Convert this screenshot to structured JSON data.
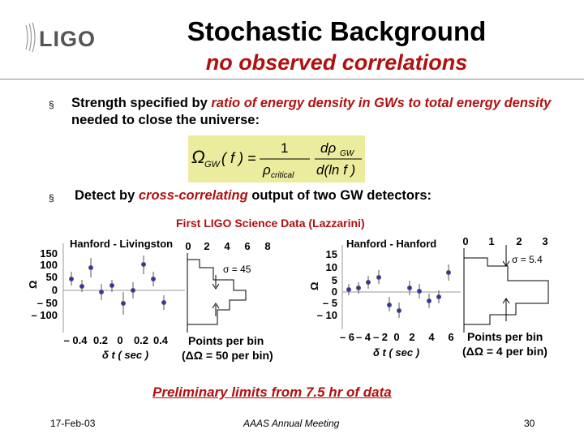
{
  "header": {
    "logo_text": "LIGO",
    "title": "Stochastic Background",
    "subtitle": "no observed correlations"
  },
  "bullets": [
    {
      "marker": "§",
      "parts": [
        {
          "text": "Strength specified by ",
          "em": false
        },
        {
          "text": "ratio of energy density in GWs to total energy density",
          "em": true
        },
        {
          "text": " needed to close the universe:",
          "em": false
        }
      ]
    },
    {
      "marker": "§",
      "parts": [
        {
          "text": "Detect by ",
          "em": false
        },
        {
          "text": "cross-correlating",
          "em": true
        },
        {
          "text": " output of two GW detectors:",
          "em": false
        }
      ]
    }
  ],
  "formula": {
    "lhs_symbol": "Ω",
    "lhs_sub": "GW",
    "lhs_arg": "( f ) =",
    "num1": "1",
    "den1": "ρ",
    "den1_sub": "critical",
    "num2": "dρ",
    "num2_sub": "GW",
    "den2": "d(ln f )"
  },
  "science_data_title": "First LIGO Science Data (Lazzarini)",
  "plots": [
    {
      "label": "Hanford - Livingston",
      "y_ticks": [
        "150",
        "100",
        "50",
        "0",
        "– 50",
        "– 100"
      ],
      "y_axis_symbol": "Ω",
      "x_ticks": [
        "– 0.4",
        "0.2",
        "0",
        "0.2",
        "0.4"
      ],
      "x_axis_label": "δ t ( sec )",
      "points_axis_ticks": [
        "0",
        "2",
        "4",
        "6",
        "8"
      ],
      "sigma_label": "σ = 45",
      "points_label": "Points per bin",
      "bin_label": "(ΔΩ = 50 per bin)"
    },
    {
      "label": "Hanford - Hanford",
      "y_ticks": [
        "15",
        "10",
        "5",
        "0",
        "– 5",
        "– 10"
      ],
      "y_axis_symbol": "Ω",
      "x_ticks": [
        "– 6",
        "– 4",
        "– 2",
        "0",
        "2",
        "4",
        "6"
      ],
      "x_axis_label": "δ t ( sec )",
      "points_axis_ticks": [
        "0",
        "1",
        "2",
        "3"
      ],
      "sigma_label": "σ = 5.4",
      "points_label": "Points per bin",
      "bin_label": "(ΔΩ = 4 per bin)"
    }
  ],
  "preliminary": "Preliminary limits from 7.5 hr of data",
  "footer": {
    "date": "17-Feb-03",
    "event": "AAAS Annual Meeting",
    "page": "30"
  }
}
